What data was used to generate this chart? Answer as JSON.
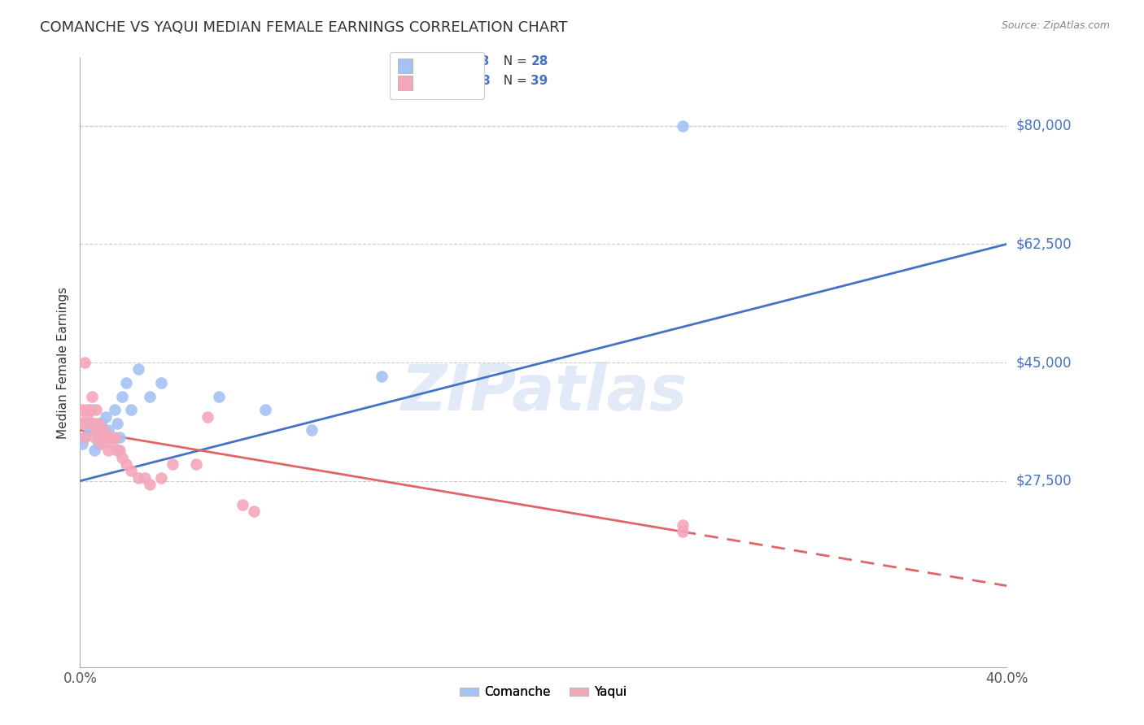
{
  "title": "COMANCHE VS YAQUI MEDIAN FEMALE EARNINGS CORRELATION CHART",
  "source": "Source: ZipAtlas.com",
  "ylabel": "Median Female Earnings",
  "xlim": [
    0.0,
    0.4
  ],
  "ylim": [
    0,
    90000
  ],
  "comanche_color": "#a4c2f4",
  "yaqui_color": "#f4a7b9",
  "trend_comanche_color": "#4472c4",
  "trend_yaqui_color": "#e06666",
  "watermark": "ZIPatlas",
  "background_color": "#ffffff",
  "grid_color": "#cccccc",
  "ytick_color": "#4472c4",
  "title_color": "#333333",
  "comanche_x": [
    0.001,
    0.002,
    0.003,
    0.004,
    0.005,
    0.006,
    0.007,
    0.008,
    0.009,
    0.01,
    0.011,
    0.012,
    0.013,
    0.015,
    0.016,
    0.017,
    0.018,
    0.02,
    0.022,
    0.025,
    0.03,
    0.035,
    0.06,
    0.08,
    0.1,
    0.13,
    0.26
  ],
  "comanche_y": [
    33000,
    34000,
    36000,
    35000,
    38000,
    32000,
    35000,
    33000,
    36000,
    34000,
    37000,
    35000,
    34000,
    38000,
    36000,
    34000,
    40000,
    42000,
    38000,
    44000,
    40000,
    42000,
    40000,
    38000,
    35000,
    43000,
    80000
  ],
  "yaqui_x": [
    0.001,
    0.001,
    0.002,
    0.002,
    0.003,
    0.003,
    0.004,
    0.004,
    0.005,
    0.005,
    0.006,
    0.006,
    0.007,
    0.007,
    0.008,
    0.008,
    0.009,
    0.01,
    0.011,
    0.012,
    0.013,
    0.014,
    0.015,
    0.016,
    0.017,
    0.018,
    0.02,
    0.022,
    0.025,
    0.028,
    0.03,
    0.035,
    0.04,
    0.05,
    0.055,
    0.07,
    0.075,
    0.26,
    0.26
  ],
  "yaqui_y": [
    36000,
    38000,
    34000,
    45000,
    37000,
    38000,
    36000,
    38000,
    40000,
    36000,
    34000,
    36000,
    35000,
    38000,
    34000,
    36000,
    33000,
    35000,
    34000,
    32000,
    34000,
    33000,
    34000,
    32000,
    32000,
    31000,
    30000,
    29000,
    28000,
    28000,
    27000,
    28000,
    30000,
    30000,
    37000,
    24000,
    23000,
    20000,
    21000
  ],
  "trend_comanche_x0": 0.0,
  "trend_comanche_y0": 27500,
  "trend_comanche_x1": 0.4,
  "trend_comanche_y1": 62500,
  "trend_yaqui_x0": 0.0,
  "trend_yaqui_y0": 35000,
  "trend_yaqui_x1_solid": 0.26,
  "trend_yaqui_y1_solid": 20000,
  "trend_yaqui_x1_dash": 0.4,
  "trend_yaqui_y1_dash": 12000,
  "ytick_vals": [
    27500,
    45000,
    62500,
    80000
  ],
  "ytick_lbls": [
    "$27,500",
    "$45,000",
    "$62,500",
    "$80,000"
  ]
}
